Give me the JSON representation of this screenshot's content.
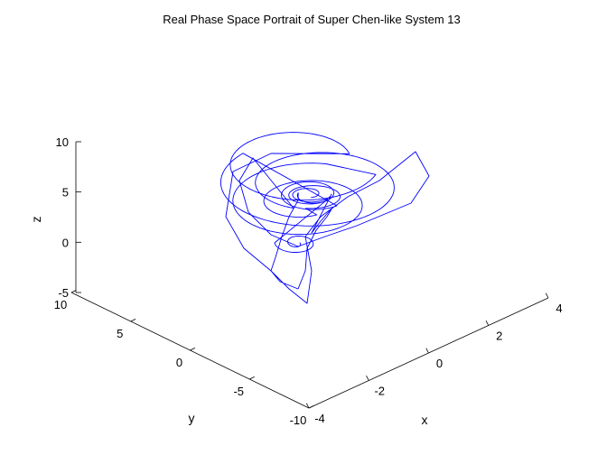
{
  "chart_data": {
    "type": "line3d",
    "title": "Real Phase Space Portrait of Super Chen-like System 13",
    "xlabel": "x",
    "ylabel": "y",
    "zlabel": "z",
    "xlim": [
      -4,
      4
    ],
    "ylim": [
      -10,
      10
    ],
    "zlim": [
      -5,
      10
    ],
    "xticks": [
      "-4",
      "-2",
      "0",
      "2",
      "4"
    ],
    "yticks": [
      "-10",
      "-5",
      "0",
      "5",
      "10"
    ],
    "zticks": [
      "-5",
      "0",
      "5",
      "10"
    ],
    "grid": false,
    "series": [
      {
        "color": "#0000ff"
      }
    ]
  }
}
